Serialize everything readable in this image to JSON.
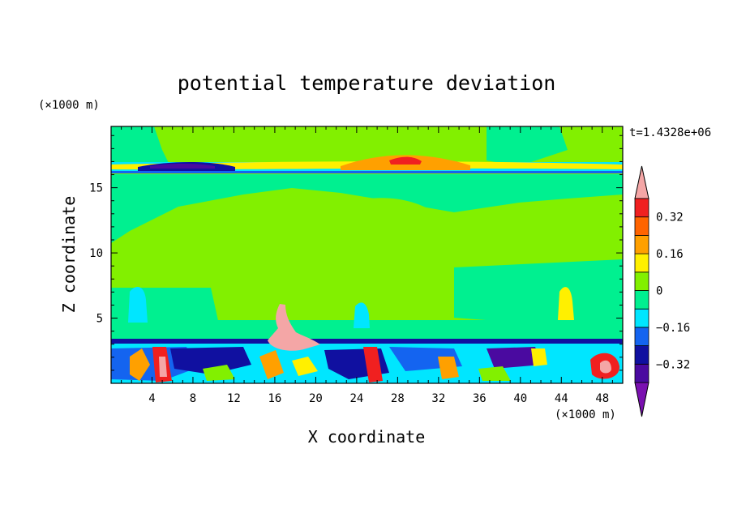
{
  "chart_data": {
    "type": "heatmap",
    "title": "potential temperature deviation",
    "xlabel": "X coordinate",
    "ylabel": "Z coordinate",
    "x_unit": "(×1000 m)",
    "y_unit": "(×1000 m)",
    "time_label": "t=1.4328e+06",
    "xlim": [
      0,
      50
    ],
    "ylim": [
      0,
      19.7
    ],
    "x_ticks": [
      4,
      8,
      12,
      16,
      20,
      24,
      28,
      32,
      36,
      40,
      44,
      48
    ],
    "y_ticks": [
      5,
      10,
      15
    ],
    "colorbar": {
      "levels": [
        -0.48,
        -0.4,
        -0.32,
        -0.24,
        -0.16,
        -0.08,
        0,
        0.08,
        0.16,
        0.24,
        0.32,
        0.4,
        0.48
      ],
      "tick_values": [
        -0.32,
        -0.16,
        0,
        0.16,
        0.32
      ],
      "tick_labels": [
        "−0.32",
        "−0.16",
        "0",
        "0.16",
        "0.32"
      ],
      "colors": [
        "#7a10b0",
        "#4a0aa0",
        "#1010a0",
        "#1464f0",
        "#00e6ff",
        "#00f090",
        "#82f000",
        "#fff000",
        "#ffa000",
        "#ff6400",
        "#f02020",
        "#f4a6a6"
      ]
    }
  }
}
